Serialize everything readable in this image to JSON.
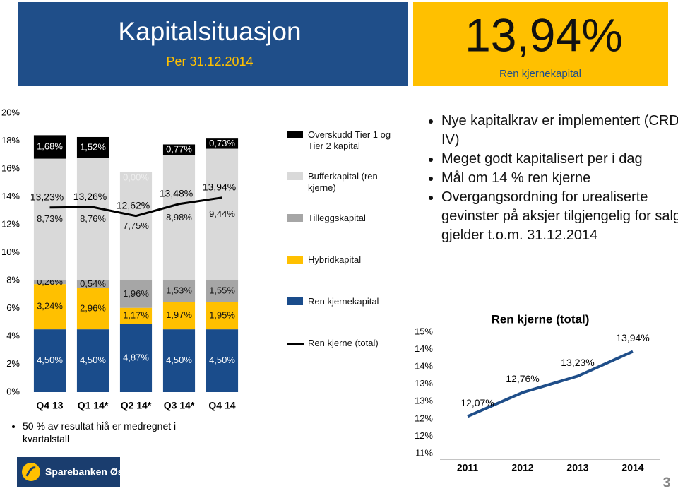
{
  "header": {
    "title": "Kapitalsituasjon",
    "subtitle": "Per 31.12.2014"
  },
  "highlight": {
    "value": "13,94%",
    "label": "Ren kjernekapital"
  },
  "chart_data": [
    {
      "type": "bar",
      "stacked": true,
      "categories": [
        "Q4 13",
        "Q1 14*",
        "Q2 14*",
        "Q3 14*",
        "Q4 14"
      ],
      "ylim": [
        0,
        20
      ],
      "yticks": [
        {
          "value": 0,
          "label": "0%"
        },
        {
          "value": 2,
          "label": "2%"
        },
        {
          "value": 4,
          "label": "4%"
        },
        {
          "value": 6,
          "label": "6%"
        },
        {
          "value": 8,
          "label": "8%"
        },
        {
          "value": 10,
          "label": "10%"
        },
        {
          "value": 12,
          "label": "12%"
        },
        {
          "value": 14,
          "label": "14%"
        },
        {
          "value": 16,
          "label": "16%"
        },
        {
          "value": 18,
          "label": "18%"
        },
        {
          "value": 20,
          "label": "20%"
        }
      ],
      "series": [
        {
          "name": "Ren kjernekapital",
          "color": "#1a4c8b",
          "values": [
            4.5,
            4.5,
            4.87,
            4.5,
            4.5
          ],
          "value_labels": [
            "4,50%",
            "4,50%",
            "4,87%",
            "4,50%",
            "4,50%"
          ]
        },
        {
          "name": "Hybridkapital",
          "color": "#ffc000",
          "values": [
            3.24,
            2.96,
            1.17,
            1.97,
            1.95
          ],
          "value_labels": [
            "3,24%",
            "2,96%",
            "1,17%",
            "1,97%",
            "1,95%"
          ]
        },
        {
          "name": "Tilleggskapital",
          "color": "#a6a6a6",
          "values": [
            0.26,
            0.54,
            1.96,
            1.53,
            1.55
          ],
          "value_labels": [
            "0,26%",
            "0,54%",
            "1,96%",
            "1,53%",
            "1,55%"
          ]
        },
        {
          "name": "Bufferkapital (ren kjerne)",
          "color": "#d9d9d9",
          "values": [
            8.73,
            8.76,
            7.75,
            8.98,
            9.44
          ],
          "value_labels": [
            "8,73%",
            "8,76%",
            "7,75%",
            "8,98%",
            "9,44%"
          ]
        },
        {
          "name": "Overskudd Tier 1 og Tier 2 kapital",
          "color": "#000000",
          "values": [
            1.68,
            1.52,
            0.0,
            0.77,
            0.73
          ],
          "value_labels": [
            "1,68%",
            "1,52%",
            "0,00%",
            "0,77%",
            "0,73%"
          ]
        },
        {
          "name": "Ren kjerne (total)",
          "type": "line",
          "color": "#000000",
          "values": [
            13.23,
            13.26,
            12.62,
            13.48,
            13.94
          ],
          "value_labels": [
            "13,23%",
            "13,26%",
            "12,62%",
            "13,48%",
            "13,94%"
          ]
        }
      ]
    },
    {
      "type": "line",
      "title": "Ren kjerne (total)",
      "categories": [
        "2011",
        "2012",
        "2013",
        "2014"
      ],
      "values": [
        12.07,
        12.76,
        13.23,
        13.94
      ],
      "value_labels": [
        "12,07%",
        "12,76%",
        "13,23%",
        "13,94%"
      ],
      "color": "#1f4e89",
      "ylim": [
        11,
        14.5
      ],
      "yticks": [
        {
          "value": 11,
          "label": "11%"
        },
        {
          "value": 11.5,
          "label": "12%"
        },
        {
          "value": 12,
          "label": "12%"
        },
        {
          "value": 12.5,
          "label": "13%"
        },
        {
          "value": 13,
          "label": "13%"
        },
        {
          "value": 13.5,
          "label": "14%"
        },
        {
          "value": 14,
          "label": "14%"
        },
        {
          "value": 14.5,
          "label": "15%"
        }
      ]
    }
  ],
  "footnote": "50 % av resultat hiå er medregnet i kvartalstall",
  "bullets": [
    "Nye kapitalkrav er implementert (CRD IV)",
    "Meget godt kapitalisert per i dag",
    "Mål om 14 % ren kjerne",
    "Overgangsordning for urealiserte gevinster på aksjer tilgjengelig for salg gjelder t.o.m. 31.12.2014"
  ],
  "logo": "Sparebanken Øst",
  "page_number": "3"
}
